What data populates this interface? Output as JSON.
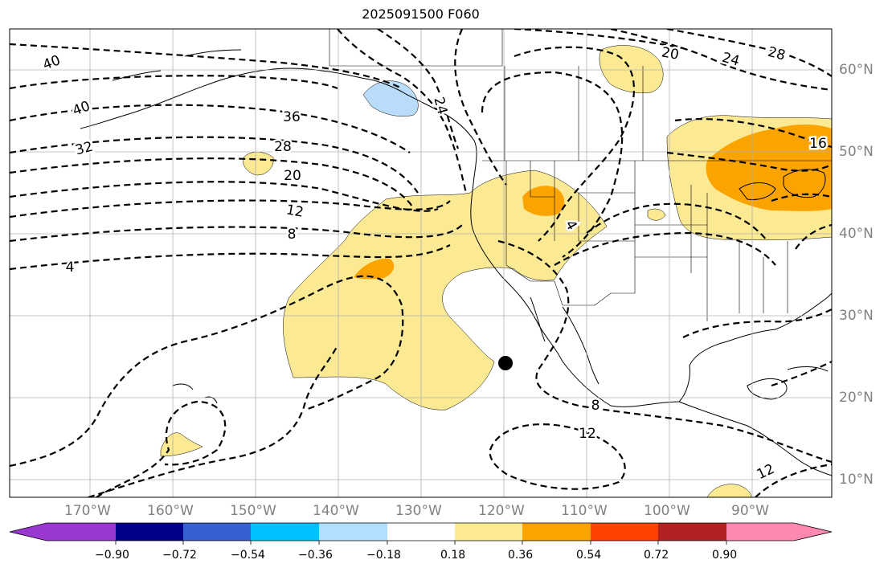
{
  "title": "2025091500 F060",
  "colors": {
    "fill_018_036": "#fbe994",
    "fill_036_054": "#fba400",
    "fill_neg_018": "#b8dcf9",
    "contour": "#000000",
    "grid": "#b0b0b0",
    "grid_label": "#808080"
  },
  "lon_labels": [
    "170°W",
    "160°W",
    "150°W",
    "140°W",
    "130°W",
    "120°W",
    "110°W",
    "100°W",
    "90°W"
  ],
  "lat_labels": [
    "60°N",
    "50°N",
    "40°N",
    "30°N",
    "20°N",
    "10°N"
  ],
  "contour_labels": [
    "40",
    "40",
    "36",
    "32",
    "28",
    "24",
    "24",
    "20",
    "20",
    "16",
    "12",
    "12",
    "12",
    "8",
    "8",
    "4",
    "4",
    "28"
  ],
  "colorbar": {
    "ticks": [
      "−0.90",
      "−0.72",
      "−0.54",
      "−0.36",
      "−0.18",
      "0.18",
      "0.36",
      "0.54",
      "0.72",
      "0.90"
    ],
    "colors": [
      "#9a37d1",
      "#00008b",
      "#3760d1",
      "#00bfff",
      "#b0e0fd",
      "#ffffff",
      "#fbe994",
      "#fba400",
      "#fe4000",
      "#b22222",
      "#ff88b0"
    ]
  },
  "marker": "black-dot"
}
